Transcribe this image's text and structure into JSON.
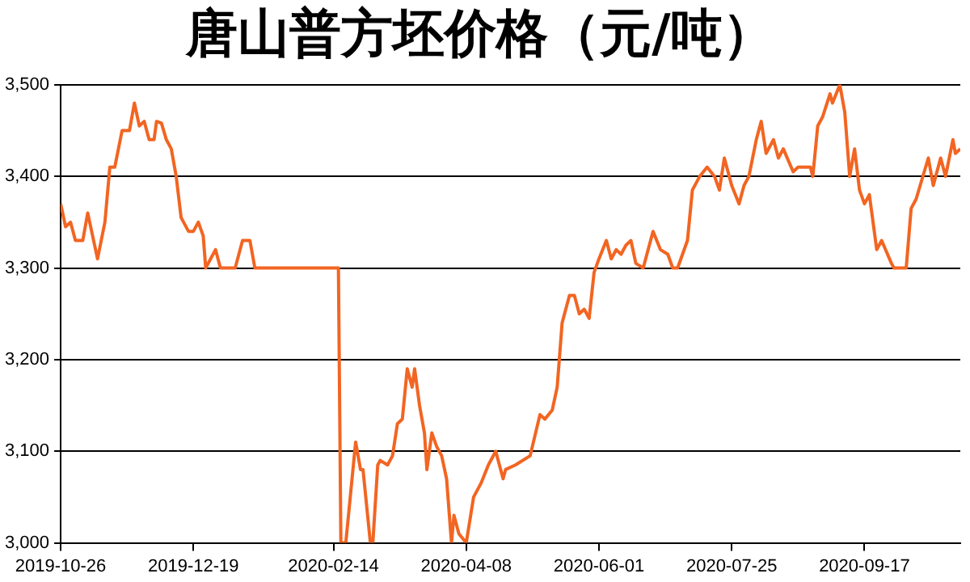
{
  "chart_data": {
    "type": "line",
    "title": "唐山普方坯价格（元/吨）",
    "x": [
      "2019-10-26",
      "2019-10-28",
      "2019-10-30",
      "2019-11-01",
      "2019-11-04",
      "2019-11-06",
      "2019-11-08",
      "2019-11-10",
      "2019-11-13",
      "2019-11-15",
      "2019-11-17",
      "2019-11-20",
      "2019-11-23",
      "2019-11-25",
      "2019-11-27",
      "2019-11-29",
      "2019-12-01",
      "2019-12-03",
      "2019-12-04",
      "2019-12-06",
      "2019-12-08",
      "2019-12-10",
      "2019-12-12",
      "2019-12-14",
      "2019-12-17",
      "2019-12-19",
      "2019-12-21",
      "2019-12-23",
      "2019-12-24",
      "2019-12-26",
      "2019-12-28",
      "2019-12-30",
      "2020-01-05",
      "2020-01-08",
      "2020-01-11",
      "2020-01-13",
      "2020-02-12",
      "2020-02-16",
      "2020-02-17",
      "2020-02-19",
      "2020-02-23",
      "2020-02-25",
      "2020-02-26",
      "2020-02-29",
      "2020-03-01",
      "2020-03-03",
      "2020-03-04",
      "2020-03-07",
      "2020-03-09",
      "2020-03-11",
      "2020-03-13",
      "2020-03-15",
      "2020-03-17",
      "2020-03-18",
      "2020-03-20",
      "2020-03-22",
      "2020-03-23",
      "2020-03-25",
      "2020-03-27",
      "2020-03-29",
      "2020-03-31",
      "2020-04-02",
      "2020-04-03",
      "2020-04-05",
      "2020-04-08",
      "2020-04-11",
      "2020-04-14",
      "2020-04-17",
      "2020-04-20",
      "2020-04-23",
      "2020-04-24",
      "2020-04-28",
      "2020-05-04",
      "2020-05-08",
      "2020-05-10",
      "2020-05-13",
      "2020-05-15",
      "2020-05-17",
      "2020-05-20",
      "2020-05-22",
      "2020-05-24",
      "2020-05-26",
      "2020-05-28",
      "2020-05-30",
      "2020-06-01",
      "2020-06-04",
      "2020-06-06",
      "2020-06-08",
      "2020-06-10",
      "2020-06-12",
      "2020-06-14",
      "2020-06-16",
      "2020-06-19",
      "2020-06-23",
      "2020-06-26",
      "2020-06-29",
      "2020-07-01",
      "2020-07-03",
      "2020-07-07",
      "2020-07-09",
      "2020-07-12",
      "2020-07-15",
      "2020-07-18",
      "2020-07-20",
      "2020-07-22",
      "2020-07-25",
      "2020-07-28",
      "2020-07-30",
      "2020-08-01",
      "2020-08-04",
      "2020-08-06",
      "2020-08-08",
      "2020-08-11",
      "2020-08-13",
      "2020-08-15",
      "2020-08-19",
      "2020-08-21",
      "2020-08-26",
      "2020-08-27",
      "2020-08-29",
      "2020-08-31",
      "2020-09-03",
      "2020-09-04",
      "2020-09-07",
      "2020-09-09",
      "2020-09-11",
      "2020-09-13",
      "2020-09-15",
      "2020-09-17",
      "2020-09-19",
      "2020-09-22",
      "2020-09-24",
      "2020-09-28",
      "2020-09-29",
      "2020-10-04",
      "2020-10-06",
      "2020-10-08",
      "2020-10-13",
      "2020-10-15",
      "2020-10-18",
      "2020-10-20",
      "2020-10-23",
      "2020-10-24",
      "2020-10-26"
    ],
    "values": [
      3370,
      3345,
      3350,
      3330,
      3330,
      3360,
      3335,
      3310,
      3350,
      3410,
      3410,
      3450,
      3450,
      3480,
      3455,
      3460,
      3440,
      3440,
      3460,
      3458,
      3440,
      3430,
      3400,
      3355,
      3340,
      3340,
      3350,
      3335,
      3300,
      3310,
      3320,
      3300,
      3300,
      3330,
      3330,
      3300,
      3300,
      3300,
      3000,
      3000,
      3110,
      3080,
      3080,
      3000,
      3000,
      3085,
      3090,
      3085,
      3095,
      3130,
      3135,
      3190,
      3170,
      3190,
      3150,
      3120,
      3080,
      3120,
      3105,
      3095,
      3070,
      3000,
      3030,
      3010,
      3000,
      3050,
      3065,
      3085,
      3100,
      3070,
      3080,
      3085,
      3095,
      3140,
      3135,
      3145,
      3170,
      3240,
      3270,
      3270,
      3250,
      3255,
      3245,
      3295,
      3310,
      3330,
      3310,
      3320,
      3315,
      3325,
      3330,
      3305,
      3300,
      3340,
      3320,
      3315,
      3300,
      3300,
      3330,
      3385,
      3400,
      3410,
      3400,
      3385,
      3420,
      3390,
      3370,
      3390,
      3400,
      3440,
      3460,
      3425,
      3440,
      3420,
      3430,
      3405,
      3410,
      3410,
      3400,
      3455,
      3465,
      3490,
      3480,
      3500,
      3470,
      3400,
      3430,
      3385,
      3370,
      3380,
      3320,
      3330,
      3305,
      3300,
      3300,
      3365,
      3375,
      3420,
      3390,
      3420,
      3400,
      3440,
      3425,
      3430
    ],
    "color": "#f26522",
    "xlim": [
      "2019-10-26",
      "2020-10-26"
    ],
    "xticks": [
      "2019-10-26",
      "2019-12-19",
      "2020-02-14",
      "2020-04-08",
      "2020-06-01",
      "2020-07-25",
      "2020-09-17"
    ],
    "ylim": [
      3000,
      3500
    ],
    "yticks": [
      {
        "value": 3000,
        "label": "3,000"
      },
      {
        "value": 3100,
        "label": "3,100"
      },
      {
        "value": 3200,
        "label": "3,200"
      },
      {
        "value": 3300,
        "label": "3,300"
      },
      {
        "value": 3400,
        "label": "3,400"
      },
      {
        "value": 3500,
        "label": "3,500"
      }
    ],
    "grid": "y",
    "marker": "none",
    "line_style": "solid"
  }
}
